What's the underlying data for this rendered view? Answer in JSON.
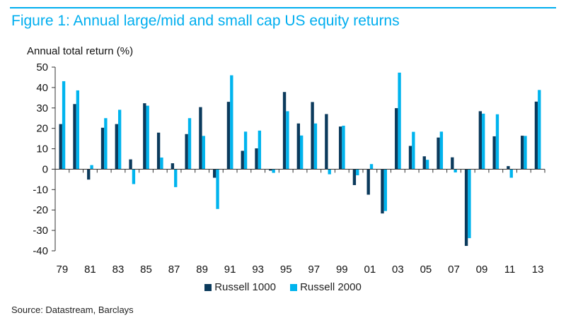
{
  "figure": {
    "title": "Figure 1: Annual large/mid and small cap US equity returns",
    "source": "Source: Datastream, Barclays"
  },
  "chart_data": {
    "type": "bar",
    "title": "Figure 1: Annual large/mid and small cap US equity returns",
    "ylabel": "Annual total return (%)",
    "xlabel": "",
    "ylim": [
      -40,
      50
    ],
    "yticks": [
      50,
      40,
      30,
      20,
      10,
      0,
      -10,
      -20,
      -30,
      -40
    ],
    "categories": [
      "79",
      "80",
      "81",
      "82",
      "83",
      "84",
      "85",
      "86",
      "87",
      "88",
      "89",
      "90",
      "91",
      "92",
      "93",
      "94",
      "95",
      "96",
      "97",
      "98",
      "99",
      "00",
      "01",
      "02",
      "03",
      "04",
      "05",
      "06",
      "07",
      "08",
      "09",
      "10",
      "11",
      "12",
      "13"
    ],
    "xtick_labels": [
      "79",
      "81",
      "83",
      "85",
      "87",
      "89",
      "91",
      "93",
      "95",
      "97",
      "99",
      "01",
      "03",
      "05",
      "07",
      "09",
      "11",
      "13"
    ],
    "legend_position": "bottom",
    "grid": false,
    "series": [
      {
        "name": "Russell 1000",
        "color": "#0b3a5c",
        "values": [
          22.1,
          31.9,
          -5.1,
          20.3,
          22.1,
          4.8,
          32.3,
          17.9,
          2.9,
          17.2,
          30.4,
          -4.2,
          33.0,
          9.0,
          10.2,
          -0.7,
          37.8,
          22.4,
          32.9,
          27.0,
          20.9,
          -7.8,
          -12.5,
          -21.7,
          29.9,
          11.4,
          6.3,
          15.5,
          5.8,
          -37.6,
          28.4,
          16.1,
          1.5,
          16.4,
          33.1
        ]
      },
      {
        "name": "Russell 2000",
        "color": "#00b4ee",
        "values": [
          43.1,
          38.6,
          2.0,
          25.0,
          29.1,
          -7.3,
          31.1,
          5.7,
          -8.8,
          25.0,
          16.3,
          -19.5,
          46.0,
          18.4,
          18.9,
          -1.8,
          28.4,
          16.5,
          22.4,
          -2.5,
          21.3,
          -3.0,
          2.5,
          -20.5,
          47.3,
          18.3,
          4.6,
          18.4,
          -1.6,
          -33.8,
          27.2,
          26.9,
          -4.2,
          16.3,
          38.8
        ]
      }
    ]
  }
}
